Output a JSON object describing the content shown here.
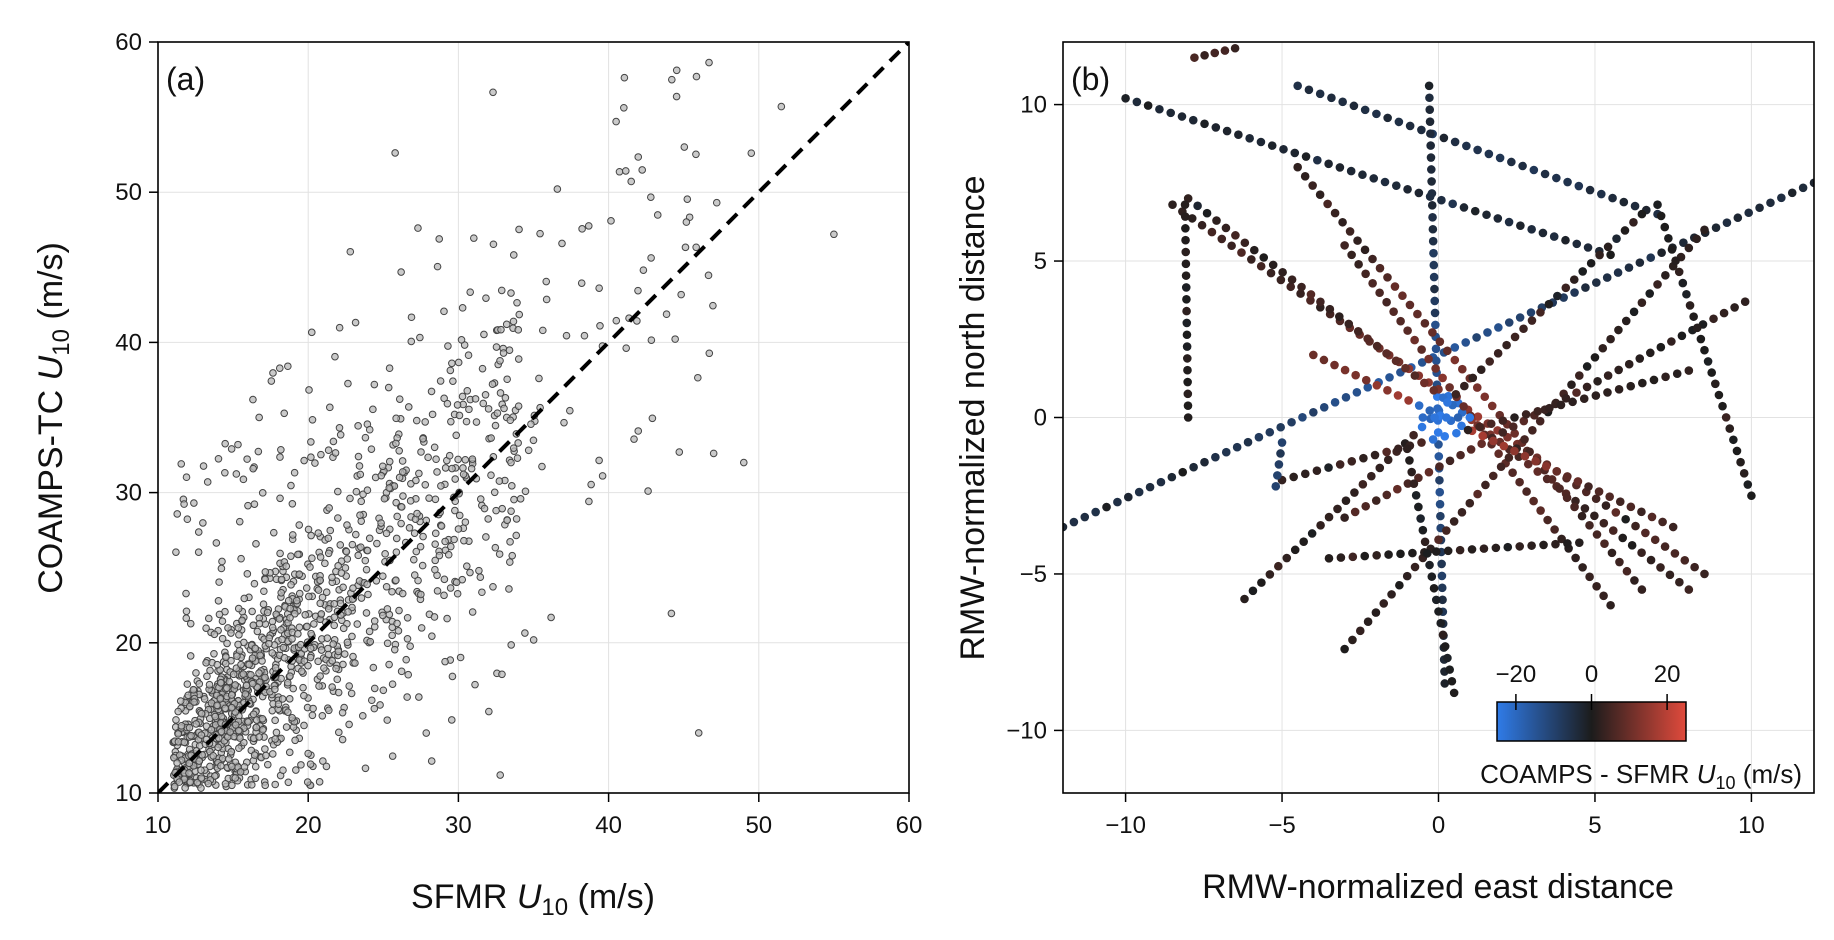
{
  "colors": {
    "scatter_fill": "#b8b8b8",
    "scatter_edge": "#444444",
    "diagonal": "#000000",
    "cmap_low": "#2f7be8",
    "cmap_mid": "#1c1c1c",
    "cmap_high": "#e04a3c"
  },
  "chart_data": [
    {
      "type": "scatter",
      "panel_label": "(a)",
      "xlabel": "SFMR U10 (m/s)",
      "ylabel": "COAMPS-TC U10 (m/s)",
      "xlim": [
        10,
        60
      ],
      "ylim": [
        10,
        60
      ],
      "xticks": [
        10,
        20,
        30,
        40,
        50,
        60
      ],
      "yticks": [
        10,
        20,
        30,
        40,
        50,
        60
      ],
      "grid": true,
      "reference_line": {
        "style": "dashed",
        "from": [
          10,
          10
        ],
        "to": [
          60,
          60
        ]
      },
      "point_count_approx": 1400,
      "distribution": {
        "x_min": 10,
        "x_max": 55,
        "dense_x_range": [
          11,
          35
        ],
        "trend": "mostly near 1:1 line, scatter widening with speed",
        "max_points": [
          [
            51.5,
            55.7
          ],
          [
            55,
            47.2
          ],
          [
            40.5,
            54.7
          ],
          [
            49.5,
            52.6
          ],
          [
            47.2,
            49.3
          ],
          [
            46,
            14
          ],
          [
            49,
            32
          ]
        ]
      }
    },
    {
      "type": "scatter",
      "panel_label": "(b)",
      "xlabel": "RMW-normalized east distance",
      "ylabel": "RMW-normalized north distance",
      "xlim": [
        -12,
        12
      ],
      "ylim": [
        -12,
        12
      ],
      "xticks": [
        -10,
        -5,
        0,
        5,
        10
      ],
      "yticks": [
        -10,
        -5,
        0,
        5,
        10
      ],
      "grid": true,
      "color_variable": "COAMPS - SFMR U10 (m/s)",
      "colorbar": {
        "label": "COAMPS - SFMR U10 (m/s)",
        "range": [
          -25,
          25
        ],
        "ticks": [
          -20,
          0,
          20
        ],
        "placement": "inset lower-right"
      },
      "description": "radial flight legs passing through the storm center, points colored by wind error",
      "legs": [
        {
          "from": [
            -12,
            -3.5
          ],
          "to": [
            12,
            7.5
          ],
          "bias": -15
        },
        {
          "from": [
            -10,
            10.2
          ],
          "to": [
            5.5,
            5.2
          ],
          "bias": -10
        },
        {
          "from": [
            -4.5,
            10.6
          ],
          "to": [
            7,
            6.5
          ],
          "bias": -18
        },
        {
          "from": [
            -0.3,
            10.6
          ],
          "to": [
            0.2,
            -8.5
          ],
          "bias": -12
        },
        {
          "from": [
            -8.5,
            6.8
          ],
          "to": [
            8.5,
            -5
          ],
          "bias": 12
        },
        {
          "from": [
            -8,
            7
          ],
          "to": [
            8,
            -5.5
          ],
          "bias": 8
        },
        {
          "from": [
            -4.5,
            8
          ],
          "to": [
            6.5,
            -5.5
          ],
          "bias": 10
        },
        {
          "from": [
            -3,
            5.5
          ],
          "to": [
            5.5,
            -6
          ],
          "bias": 9
        },
        {
          "from": [
            -3,
            -7.4
          ],
          "to": [
            8.5,
            6
          ],
          "bias": 5
        },
        {
          "from": [
            -6.2,
            -5.8
          ],
          "to": [
            6.5,
            6.5
          ],
          "bias": 3
        },
        {
          "from": [
            -3,
            -3.2
          ],
          "to": [
            9.8,
            3.7
          ],
          "bias": 6
        },
        {
          "from": [
            -4,
            2
          ],
          "to": [
            7.5,
            -3.5
          ],
          "bias": 15
        },
        {
          "from": [
            -5,
            -2
          ],
          "to": [
            8,
            1.5
          ],
          "bias": 4
        },
        {
          "from": [
            -8.1,
            6.8
          ],
          "to": [
            -8,
            0
          ],
          "bias": 2
        },
        {
          "from": [
            -3.5,
            -4.5
          ],
          "to": [
            4.5,
            -4
          ],
          "bias": 2
        },
        {
          "from": [
            7,
            6.8
          ],
          "to": [
            10,
            -2.5
          ],
          "bias": 0
        },
        {
          "from": [
            -7.8,
            11.5
          ],
          "to": [
            -6.5,
            11.8
          ],
          "bias": 14
        },
        {
          "from": [
            0.5,
            -8.8
          ],
          "to": [
            -1,
            -1
          ],
          "bias": 0
        },
        {
          "from": [
            -0.5,
            0
          ],
          "to": [
            1,
            0
          ],
          "bias": -30
        },
        {
          "from": [
            -5.2,
            -2.2
          ],
          "to": [
            -5,
            -0.8
          ],
          "bias": -20
        }
      ]
    }
  ]
}
